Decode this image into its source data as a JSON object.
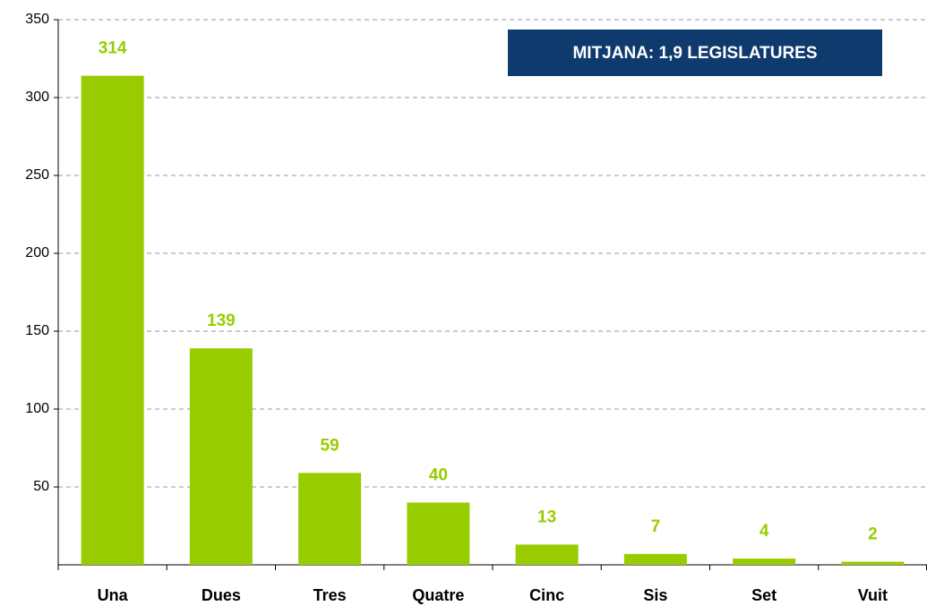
{
  "chart_data": {
    "type": "bar",
    "categories": [
      "Una",
      "Dues",
      "Tres",
      "Quatre",
      "Cinc",
      "Sis",
      "Set",
      "Vuit"
    ],
    "values": [
      314,
      139,
      59,
      40,
      13,
      7,
      4,
      2
    ],
    "color": "#99cc00",
    "value_label_color": "#99cc00",
    "ylim": [
      0,
      350
    ],
    "yticks": [
      50,
      100,
      150,
      200,
      250,
      300,
      350
    ],
    "grid": true,
    "annotation": "MITJANA: 1,9 LEGISLATURES",
    "annotation_color": "#0f3a6e"
  }
}
